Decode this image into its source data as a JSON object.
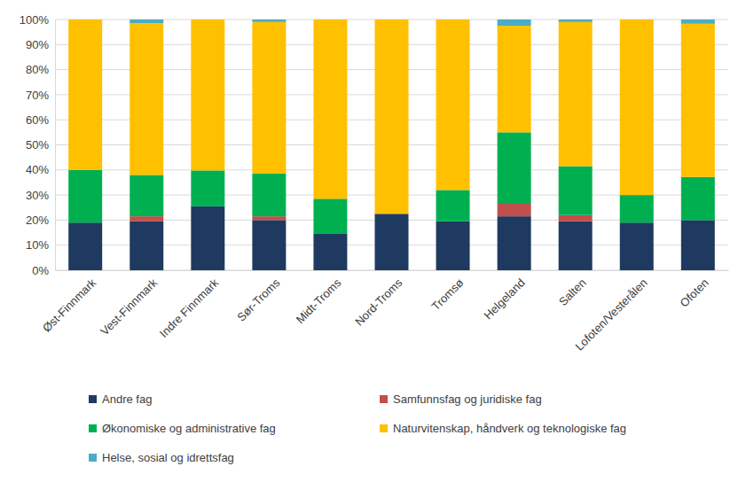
{
  "chart_data": {
    "type": "bar",
    "stacked": true,
    "grid": true,
    "legend": "bottom",
    "categories": [
      "Øst-Finnmark",
      "Vest-Finnmark",
      "Indre Finnmark",
      "Sør-Troms",
      "Midt-Troms",
      "Nord-Troms",
      "Tromsø",
      "Helgeland",
      "Salten",
      "Lofoten/Vesterålen",
      "Ofoten"
    ],
    "ylim": [
      0,
      100
    ],
    "yticks": [
      {
        "value": 0,
        "label": "0%"
      },
      {
        "value": 10,
        "label": "10%"
      },
      {
        "value": 20,
        "label": "20%"
      },
      {
        "value": 30,
        "label": "30%"
      },
      {
        "value": 40,
        "label": "40%"
      },
      {
        "value": 50,
        "label": "50%"
      },
      {
        "value": 60,
        "label": "60%"
      },
      {
        "value": 70,
        "label": "70%"
      },
      {
        "value": 80,
        "label": "80%"
      },
      {
        "value": 90,
        "label": "90%"
      },
      {
        "value": 100,
        "label": "100%"
      }
    ],
    "series": [
      {
        "name": "Andre fag",
        "color": "#1f3a60",
        "values": [
          19,
          19.5,
          25.5,
          20,
          14.5,
          22.5,
          19.5,
          21.5,
          19.5,
          19,
          20
        ]
      },
      {
        "name": "Samfunnsfag og juridiske fag",
        "color": "#c0504d",
        "values": [
          0,
          2,
          0,
          1.5,
          0,
          0,
          0,
          5,
          2.5,
          0,
          0
        ]
      },
      {
        "name": "Økonomiske og administrative fag",
        "color": "#00b050",
        "values": [
          21,
          16.5,
          14.3,
          17,
          14,
          0,
          12.5,
          28.5,
          19.5,
          11,
          17.2
        ]
      },
      {
        "name": "Naturvitenskap, håndverk og teknologiske fag",
        "color": "#ffc000",
        "values": [
          60,
          60.5,
          60.2,
          60.5,
          71.5,
          77.5,
          68,
          42.5,
          57.5,
          70,
          61.1
        ]
      },
      {
        "name": "Helse, sosial og idrettsfag",
        "color": "#4bacc6",
        "values": [
          0,
          1.5,
          0,
          1,
          0,
          0,
          0,
          2.5,
          1,
          0,
          1.7
        ]
      }
    ]
  }
}
